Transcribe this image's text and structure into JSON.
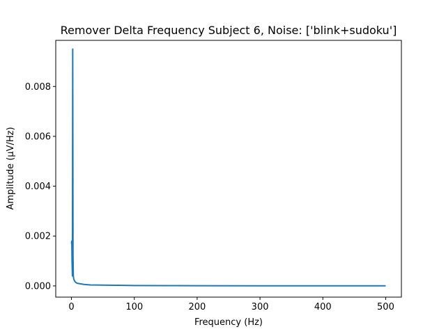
{
  "chart_data": {
    "type": "line",
    "title": "Remover Delta Frequency Subject 6, Noise: ['blink+sudoku']",
    "xlabel": "Frequency (Hz)",
    "ylabel": "Amplitude (µV/Hz)",
    "xlim": [
      -25,
      525
    ],
    "ylim": [
      -0.00045,
      0.00985
    ],
    "xticks": [
      0,
      100,
      200,
      300,
      400,
      500
    ],
    "xtick_labels": [
      "0",
      "100",
      "200",
      "300",
      "400",
      "500"
    ],
    "yticks": [
      0.0,
      0.002,
      0.004,
      0.006,
      0.008
    ],
    "ytick_labels": [
      "0.000",
      "0.002",
      "0.004",
      "0.006",
      "0.008"
    ],
    "grid": false,
    "legend": "none",
    "series": [
      {
        "color": "#1f77b4",
        "x": [
          0,
          0.5,
          1,
          1.5,
          2,
          2.5,
          3,
          3.5,
          4,
          5,
          6,
          8,
          10,
          15,
          20,
          30,
          50,
          83,
          100,
          150,
          200,
          300,
          400,
          500
        ],
        "y": [
          0.0017,
          0.0018,
          0.0009,
          0.0004,
          0.0095,
          0.0012,
          0.0004,
          0.0003,
          0.00025,
          0.0002,
          0.00016,
          0.00012,
          0.0001,
          8e-05,
          6e-05,
          4e-05,
          3e-05,
          2e-05,
          1.5e-05,
          1e-05,
          8e-06,
          5e-06,
          3e-06,
          2e-06
        ]
      }
    ]
  }
}
